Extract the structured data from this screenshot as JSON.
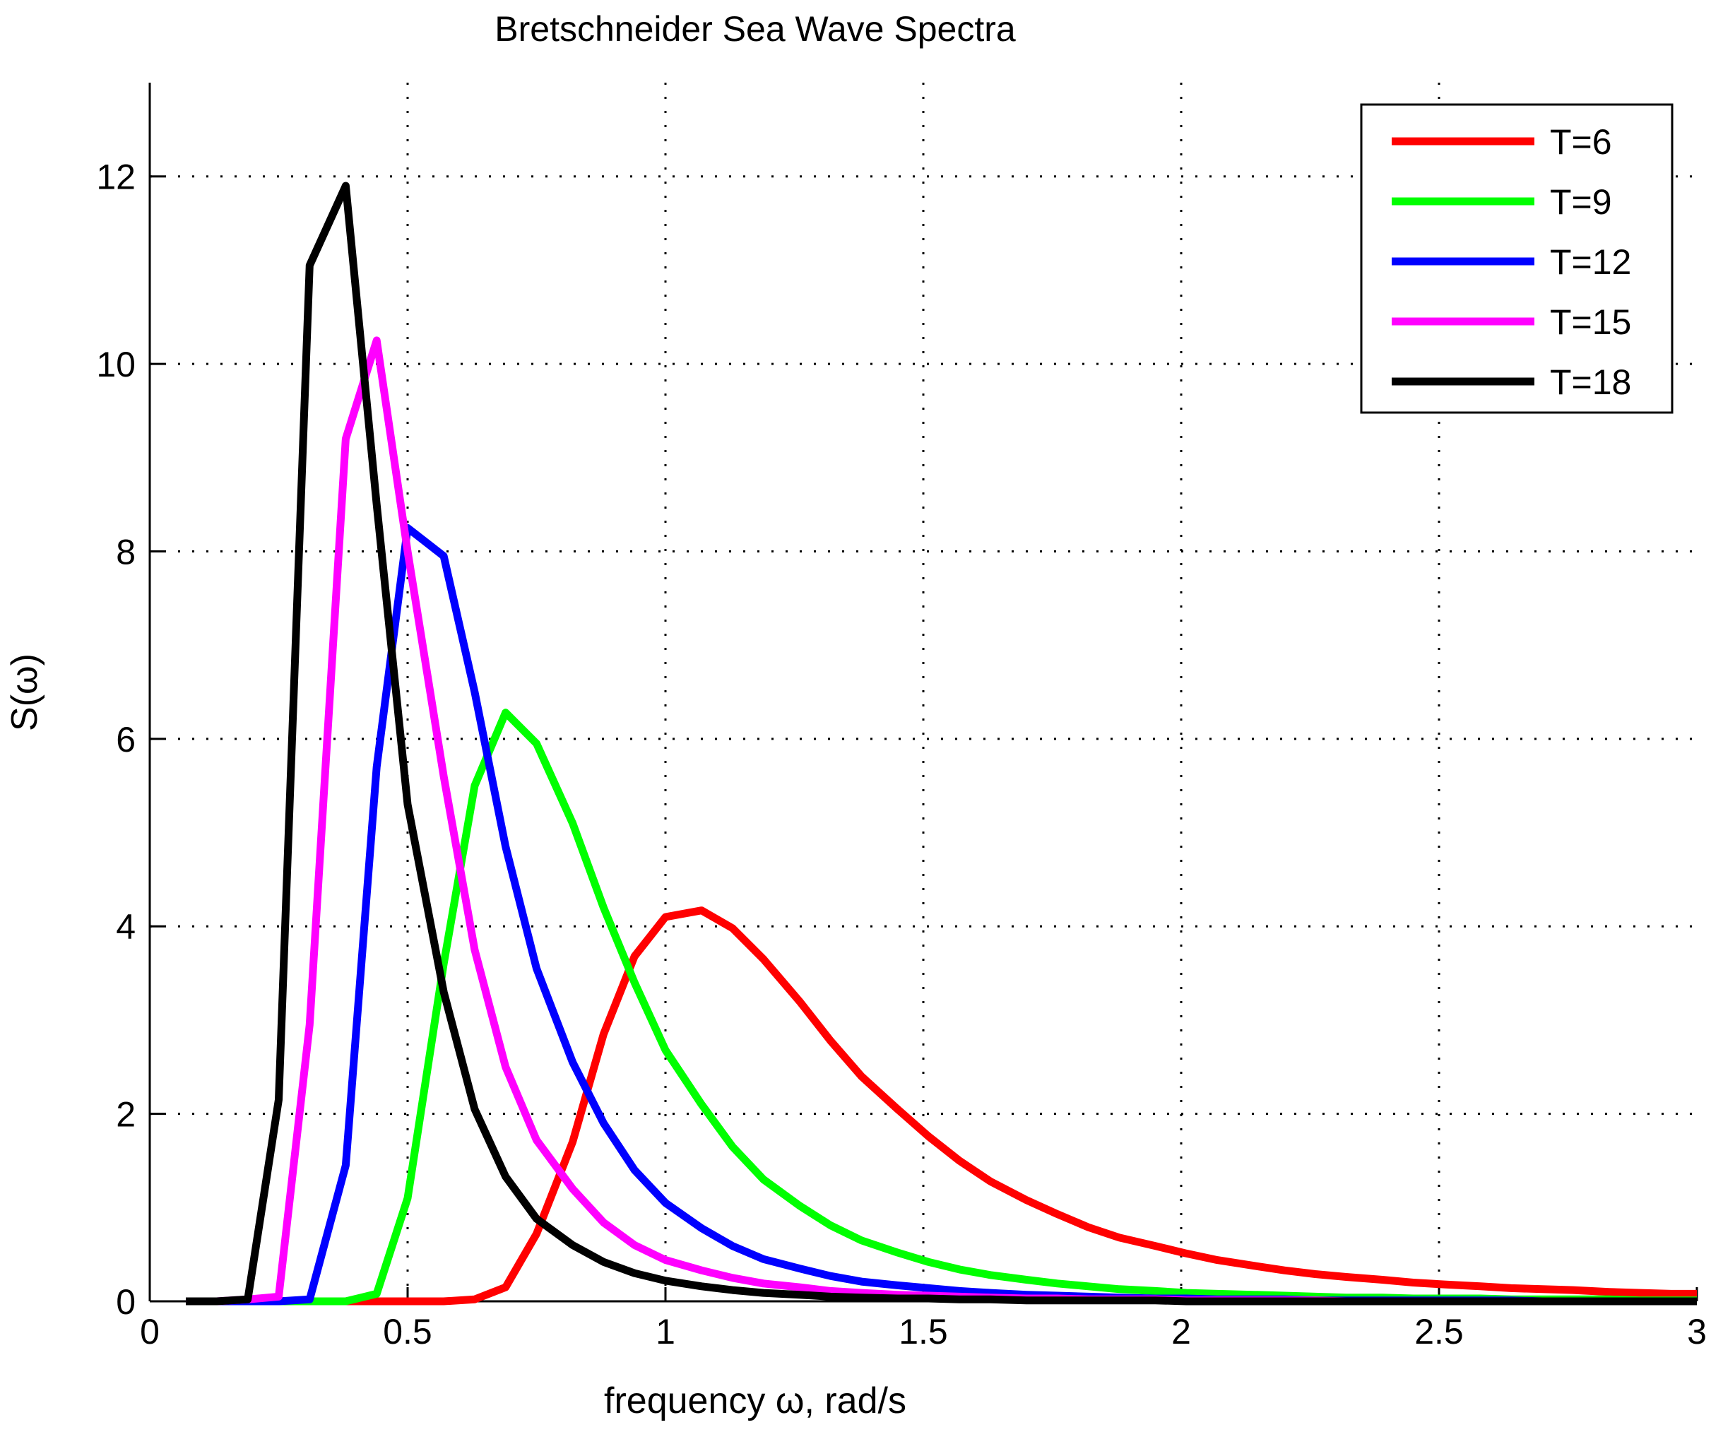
{
  "chart_data": {
    "type": "line",
    "title": "Bretschneider Sea Wave Spectra",
    "xlabel": "frequency ω, rad/s",
    "ylabel": "S(ω)",
    "xlim": [
      0,
      3
    ],
    "ylim": [
      0,
      13
    ],
    "xticks": [
      0,
      0.5,
      1,
      1.5,
      2,
      2.5,
      3
    ],
    "yticks": [
      0,
      2,
      4,
      6,
      8,
      10,
      12
    ],
    "xtick_labels": [
      "0",
      "0.5",
      "1",
      "1.5",
      "2",
      "2.5",
      "3"
    ],
    "ytick_labels": [
      "0",
      "2",
      "4",
      "6",
      "8",
      "10",
      "12"
    ],
    "grid": true,
    "legend_position": "top-right",
    "series": [
      {
        "name": "T=6",
        "color": "#ff0000",
        "x": [
          0.07,
          0.13,
          0.19,
          0.25,
          0.31,
          0.38,
          0.44,
          0.5,
          0.57,
          0.63,
          0.69,
          0.75,
          0.82,
          0.88,
          0.94,
          1.0,
          1.07,
          1.13,
          1.19,
          1.26,
          1.32,
          1.38,
          1.45,
          1.51,
          1.57,
          1.63,
          1.7,
          1.76,
          1.82,
          1.88,
          1.95,
          2.01,
          2.07,
          2.14,
          2.2,
          2.26,
          2.32,
          2.39,
          2.45,
          2.51,
          2.58,
          2.64,
          2.7,
          2.76,
          2.83,
          2.89,
          2.95,
          3.0
        ],
        "y": [
          0,
          0,
          0,
          0,
          0,
          0,
          0,
          0,
          0,
          0.02,
          0.15,
          0.72,
          1.7,
          2.85,
          3.68,
          4.1,
          4.17,
          3.98,
          3.65,
          3.2,
          2.78,
          2.4,
          2.05,
          1.76,
          1.5,
          1.28,
          1.08,
          0.93,
          0.79,
          0.68,
          0.59,
          0.51,
          0.44,
          0.38,
          0.33,
          0.29,
          0.26,
          0.23,
          0.2,
          0.18,
          0.16,
          0.14,
          0.13,
          0.12,
          0.1,
          0.09,
          0.08,
          0.08
        ]
      },
      {
        "name": "T=9",
        "color": "#00ff00",
        "x": [
          0.07,
          0.13,
          0.19,
          0.25,
          0.31,
          0.38,
          0.44,
          0.5,
          0.57,
          0.63,
          0.69,
          0.75,
          0.82,
          0.88,
          0.94,
          1.0,
          1.07,
          1.13,
          1.19,
          1.26,
          1.32,
          1.38,
          1.45,
          1.51,
          1.57,
          1.63,
          1.7,
          1.76,
          1.82,
          1.88,
          1.95,
          2.01,
          2.07,
          2.14,
          2.2,
          2.26,
          2.32,
          2.39,
          2.45,
          2.51,
          2.58,
          2.64,
          2.7,
          2.76,
          2.83,
          2.89,
          2.95,
          3.0
        ],
        "y": [
          0,
          0,
          0,
          0,
          0,
          0,
          0.08,
          1.1,
          3.6,
          5.5,
          6.28,
          5.95,
          5.1,
          4.2,
          3.4,
          2.68,
          2.1,
          1.65,
          1.3,
          1.02,
          0.81,
          0.65,
          0.52,
          0.42,
          0.34,
          0.28,
          0.23,
          0.19,
          0.16,
          0.13,
          0.11,
          0.09,
          0.08,
          0.07,
          0.06,
          0.05,
          0.04,
          0.04,
          0.03,
          0.03,
          0.03,
          0.02,
          0.02,
          0.02,
          0.02,
          0.01,
          0.01,
          0.01
        ]
      },
      {
        "name": "T=12",
        "color": "#0000ff",
        "x": [
          0.07,
          0.13,
          0.19,
          0.25,
          0.31,
          0.38,
          0.44,
          0.5,
          0.57,
          0.63,
          0.69,
          0.75,
          0.82,
          0.88,
          0.94,
          1.0,
          1.07,
          1.13,
          1.19,
          1.26,
          1.32,
          1.38,
          1.45,
          1.51,
          1.57,
          1.63,
          1.7,
          1.76,
          1.82,
          1.88,
          1.95,
          2.01,
          2.07,
          2.14,
          2.2,
          2.26,
          2.32,
          2.39,
          2.45,
          2.51,
          2.58,
          2.64,
          2.7,
          2.76,
          2.83,
          2.89,
          2.95,
          3.0
        ],
        "y": [
          0,
          0,
          0,
          0,
          0.02,
          1.45,
          5.7,
          8.25,
          7.95,
          6.5,
          4.85,
          3.55,
          2.55,
          1.9,
          1.4,
          1.05,
          0.78,
          0.59,
          0.45,
          0.35,
          0.27,
          0.21,
          0.17,
          0.14,
          0.11,
          0.09,
          0.07,
          0.06,
          0.05,
          0.04,
          0.03,
          0.03,
          0.02,
          0.02,
          0.02,
          0.01,
          0.01,
          0.01,
          0.01,
          0.01,
          0.01,
          0.01,
          0,
          0,
          0,
          0,
          0,
          0
        ]
      },
      {
        "name": "T=15",
        "color": "#ff00ff",
        "x": [
          0.07,
          0.13,
          0.19,
          0.25,
          0.31,
          0.38,
          0.44,
          0.5,
          0.57,
          0.63,
          0.69,
          0.75,
          0.82,
          0.88,
          0.94,
          1.0,
          1.07,
          1.13,
          1.19,
          1.26,
          1.32,
          1.38,
          1.45,
          1.51,
          1.57,
          1.63,
          1.7,
          1.76,
          1.82,
          1.88,
          1.95,
          2.01,
          2.07,
          2.14,
          2.2,
          2.26,
          2.32,
          2.39,
          2.45,
          2.51,
          2.58,
          2.64,
          2.7,
          2.76,
          2.83,
          2.89,
          2.95,
          3.0
        ],
        "y": [
          0,
          0,
          0.02,
          0.05,
          2.95,
          9.2,
          10.25,
          8.0,
          5.6,
          3.75,
          2.5,
          1.72,
          1.2,
          0.84,
          0.6,
          0.44,
          0.33,
          0.25,
          0.19,
          0.15,
          0.11,
          0.09,
          0.07,
          0.06,
          0.05,
          0.04,
          0.03,
          0.03,
          0.02,
          0.02,
          0.02,
          0.01,
          0.01,
          0.01,
          0.01,
          0.01,
          0,
          0,
          0,
          0,
          0,
          0,
          0,
          0,
          0,
          0,
          0,
          0
        ]
      },
      {
        "name": "T=18",
        "color": "#000000",
        "x": [
          0.07,
          0.13,
          0.19,
          0.25,
          0.31,
          0.38,
          0.44,
          0.5,
          0.57,
          0.63,
          0.69,
          0.75,
          0.82,
          0.88,
          0.94,
          1.0,
          1.07,
          1.13,
          1.19,
          1.26,
          1.32,
          1.38,
          1.45,
          1.51,
          1.57,
          1.63,
          1.7,
          1.76,
          1.82,
          1.88,
          1.95,
          2.01,
          2.07,
          2.14,
          2.2,
          2.26,
          2.32,
          2.39,
          2.45,
          2.51,
          2.58,
          2.64,
          2.7,
          2.76,
          2.83,
          2.89,
          2.95,
          3.0
        ],
        "y": [
          0,
          0,
          0.02,
          2.15,
          11.05,
          11.9,
          8.5,
          5.3,
          3.3,
          2.05,
          1.33,
          0.88,
          0.6,
          0.42,
          0.3,
          0.22,
          0.16,
          0.12,
          0.09,
          0.07,
          0.05,
          0.04,
          0.03,
          0.03,
          0.02,
          0.02,
          0.01,
          0.01,
          0.01,
          0.01,
          0.01,
          0,
          0,
          0,
          0,
          0,
          0,
          0,
          0,
          0,
          0,
          0,
          0,
          0,
          0,
          0,
          0,
          0
        ]
      }
    ]
  }
}
